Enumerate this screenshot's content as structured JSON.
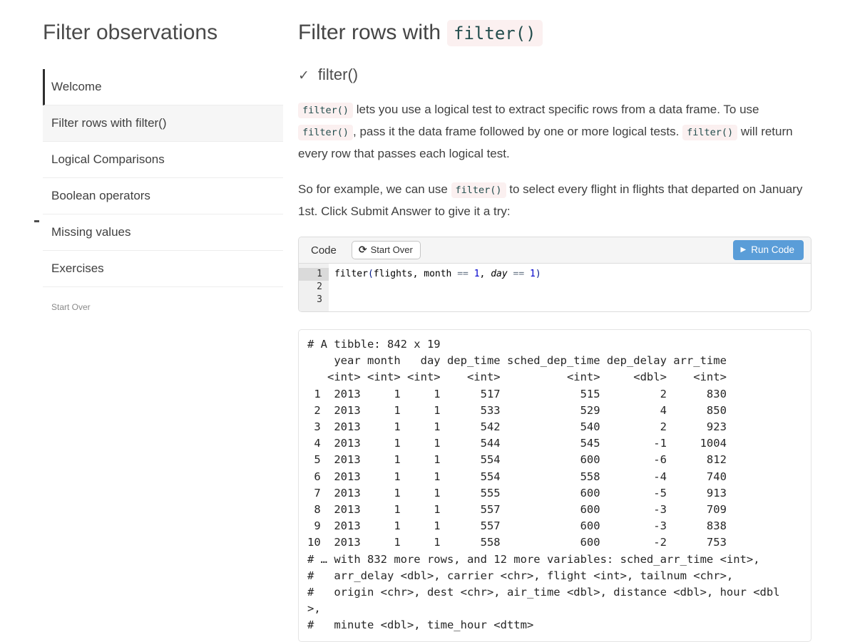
{
  "sidebar": {
    "title": "Filter observations",
    "items": [
      {
        "label": "Welcome",
        "state": "current"
      },
      {
        "label": "Filter rows with filter()",
        "state": "active"
      },
      {
        "label": "Logical Comparisons",
        "state": "normal"
      },
      {
        "label": "Boolean operators",
        "state": "normal"
      },
      {
        "label": "Missing values",
        "state": "normal"
      },
      {
        "label": "Exercises",
        "state": "normal"
      }
    ],
    "start_over": "Start Over"
  },
  "header": {
    "title_text": "Filter rows with",
    "title_code": "filter()"
  },
  "section": {
    "check_icon": "✓",
    "title": "filter()"
  },
  "paragraphs": [
    [
      {
        "t": "code",
        "v": "filter()"
      },
      {
        "t": "text",
        "v": " lets you use a logical test to extract specific rows from a data frame. To use "
      },
      {
        "t": "code",
        "v": "filter()"
      },
      {
        "t": "text",
        "v": ", pass it the data frame followed by one or more logical tests. "
      },
      {
        "t": "code",
        "v": "filter()"
      },
      {
        "t": "text",
        "v": " will return every row that passes each logical test."
      }
    ],
    [
      {
        "t": "text",
        "v": "So for example, we can use "
      },
      {
        "t": "code",
        "v": "filter()"
      },
      {
        "t": "text",
        "v": " to select every flight in flights that departed on January 1st. Click Submit Answer to give it a try:"
      }
    ]
  ],
  "exercise": {
    "label": "Code",
    "start_over_button": "Start Over",
    "refresh_icon": "⟳",
    "run_button": "Run Code",
    "play_icon": "▶",
    "gutter": [
      "1",
      "2",
      "3"
    ],
    "code_tokens": [
      {
        "v": "filter",
        "c": "txt"
      },
      {
        "v": "(",
        "c": "paren"
      },
      {
        "v": "flights",
        "c": "txt"
      },
      {
        "v": ", ",
        "c": "txt"
      },
      {
        "v": "month ",
        "c": "txt"
      },
      {
        "v": "== ",
        "c": "op"
      },
      {
        "v": "1",
        "c": "num"
      },
      {
        "v": ", ",
        "c": "txt"
      },
      {
        "v": "day ",
        "c": "ital"
      },
      {
        "v": "== ",
        "c": "op"
      },
      {
        "v": "1",
        "c": "num"
      },
      {
        "v": ")",
        "c": "paren"
      }
    ]
  },
  "output": {
    "lines": [
      "# A tibble: 842 x 19",
      "    year month   day dep_time sched_dep_time dep_delay arr_time",
      "   <int> <int> <int>    <int>          <int>     <dbl>    <int>",
      " 1  2013     1     1      517            515         2      830",
      " 2  2013     1     1      533            529         4      850",
      " 3  2013     1     1      542            540         2      923",
      " 4  2013     1     1      544            545        -1     1004",
      " 5  2013     1     1      554            600        -6      812",
      " 6  2013     1     1      554            558        -4      740",
      " 7  2013     1     1      555            600        -5      913",
      " 8  2013     1     1      557            600        -3      709",
      " 9  2013     1     1      557            600        -3      838",
      "10  2013     1     1      558            600        -2      753",
      "# … with 832 more rows, and 12 more variables: sched_arr_time <int>,",
      "#   arr_delay <dbl>, carrier <chr>, flight <int>, tailnum <chr>,",
      "#   origin <chr>, dest <chr>, air_time <dbl>, distance <dbl>, hour <dbl",
      ">,",
      "#   minute <dbl>, time_hour <dttm>"
    ]
  },
  "colors": {
    "accent_blue": "#5a9dd8",
    "inline_code_text": "#234d4d",
    "inline_code_bg": "#fbf0f0",
    "token_operator": "#687687",
    "token_number": "#0000cd",
    "active_nav_bg": "#f6f6f6",
    "current_nav_bar": "#2e2e2e"
  }
}
